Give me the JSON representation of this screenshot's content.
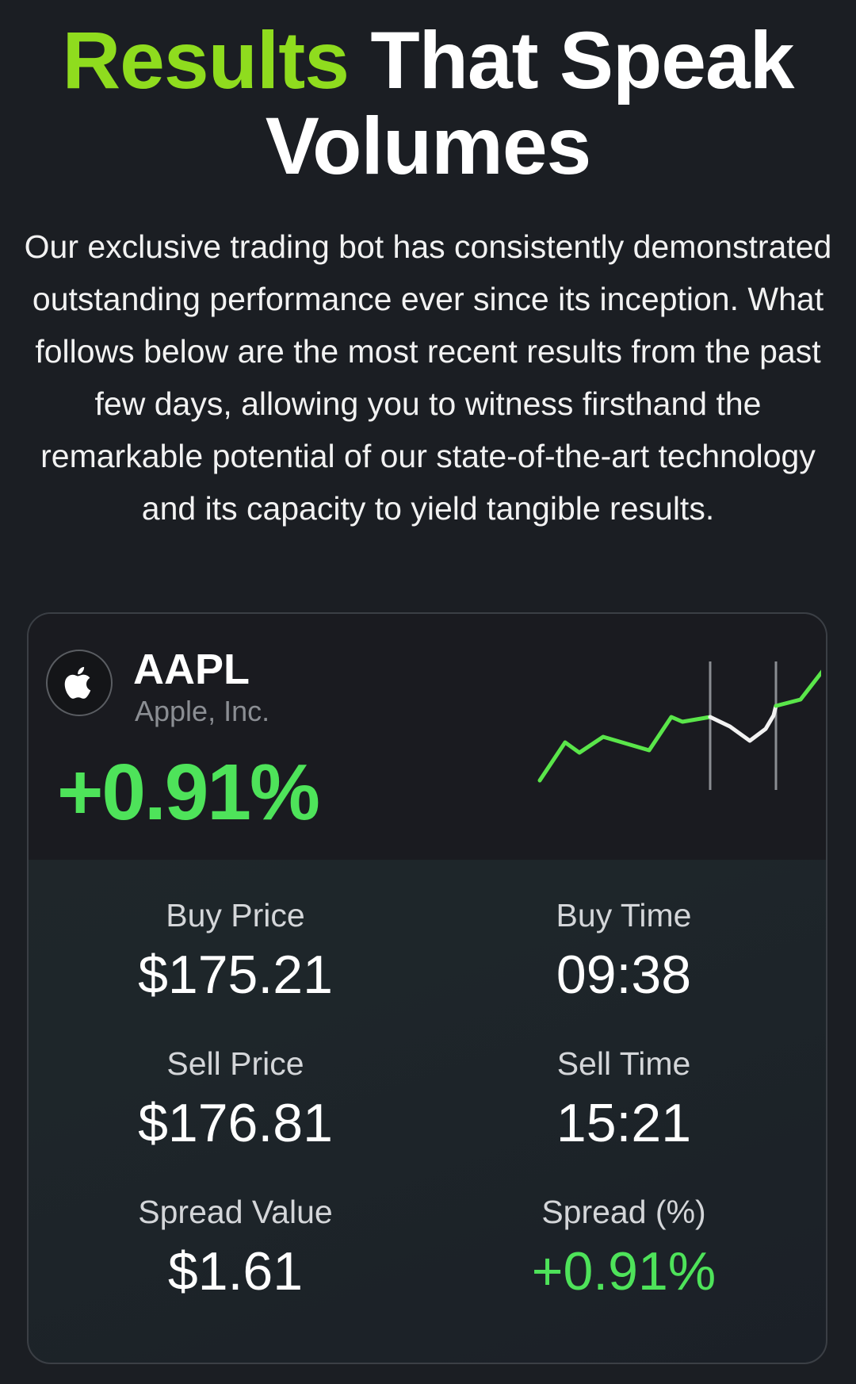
{
  "hero": {
    "title_accent": "Results",
    "title_rest": "That Speak Volumes",
    "description": "Our exclusive trading bot has consistently demonstrated outstanding performance ever since its inception. What follows below are the most recent results from the past few days, allowing you to witness firsthand the remarkable potential of our state-of-the-art technology and its capacity to yield tangible results."
  },
  "card": {
    "ticker": "AAPL",
    "company": "Apple, Inc.",
    "change": "+0.91%",
    "logo_icon": "apple-logo-icon",
    "colors": {
      "accent": "#8fdc1e",
      "positive": "#4ee35a"
    },
    "stats": {
      "buy_price_label": "Buy Price",
      "buy_price": "$175.21",
      "buy_time_label": "Buy Time",
      "buy_time": "09:38",
      "sell_price_label": "Sell Price",
      "sell_price": "$176.81",
      "sell_time_label": "Sell Time",
      "sell_time": "15:21",
      "spread_value_label": "Spread Value",
      "spread_value": "$1.61",
      "spread_pct_label": "Spread (%)",
      "spread_pct": "+0.91%"
    }
  }
}
